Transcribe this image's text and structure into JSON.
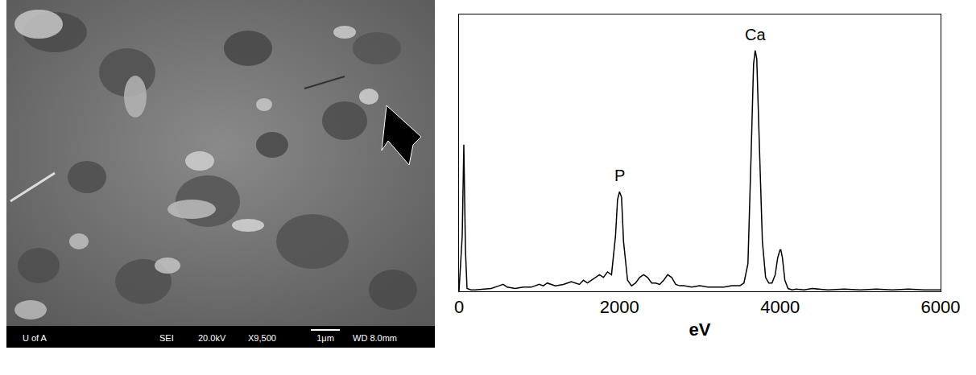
{
  "micrograph": {
    "info_bar": [
      "U of A",
      "SEI",
      "20.0kV",
      "X9,500",
      "1μm",
      "WD 8.0mm"
    ]
  },
  "chart_data": {
    "type": "line",
    "x_label": "eV",
    "color": "#000000",
    "grid": false,
    "tick_labels": "x",
    "xlim": [
      0,
      6000
    ],
    "xticks": [
      0,
      2000,
      4000,
      6000
    ],
    "ylim": [
      0,
      100
    ],
    "x": [
      0,
      40,
      60,
      80,
      100,
      150,
      200,
      300,
      400,
      500,
      550,
      600,
      700,
      800,
      900,
      1000,
      1050,
      1100,
      1200,
      1300,
      1400,
      1500,
      1550,
      1600,
      1700,
      1750,
      1800,
      1850,
      1900,
      1950,
      1975,
      2000,
      2025,
      2050,
      2100,
      2150,
      2200,
      2250,
      2300,
      2350,
      2400,
      2450,
      2500,
      2550,
      2600,
      2650,
      2700,
      2750,
      2800,
      2900,
      3000,
      3100,
      3200,
      3300,
      3400,
      3500,
      3550,
      3600,
      3640,
      3670,
      3690,
      3710,
      3740,
      3780,
      3820,
      3860,
      3900,
      3940,
      3970,
      4000,
      4010,
      4030,
      4060,
      4100,
      4150,
      4200,
      4300,
      4400,
      4600,
      4800,
      5000,
      5200,
      5400,
      5600,
      5800,
      6000
    ],
    "values": [
      0,
      20,
      53,
      15,
      1,
      0.5,
      0.5,
      0.8,
      1,
      2,
      2.5,
      1.5,
      1,
      1.5,
      1.5,
      2.5,
      2,
      3,
      2,
      2.5,
      3.5,
      2.5,
      4,
      3,
      5,
      6,
      5,
      7,
      6,
      20,
      33,
      36,
      34,
      18,
      4,
      2,
      3,
      5,
      6,
      5,
      3,
      3,
      2.5,
      4,
      6,
      5,
      2.5,
      2,
      2,
      1.5,
      2,
      1.5,
      1.5,
      1.5,
      2,
      2,
      3,
      10,
      50,
      82,
      87,
      84,
      55,
      18,
      5,
      3,
      3,
      6,
      12,
      15,
      15,
      12,
      4,
      1,
      0.5,
      0.8,
      0.5,
      1,
      0.5,
      0.8,
      0.5,
      0.8,
      0.5,
      0.8,
      0.5,
      0.5
    ],
    "annotations": [
      {
        "text": "P",
        "x": 2000,
        "y": 38
      },
      {
        "text": "Ca",
        "x": 3690,
        "y": 89
      }
    ]
  }
}
